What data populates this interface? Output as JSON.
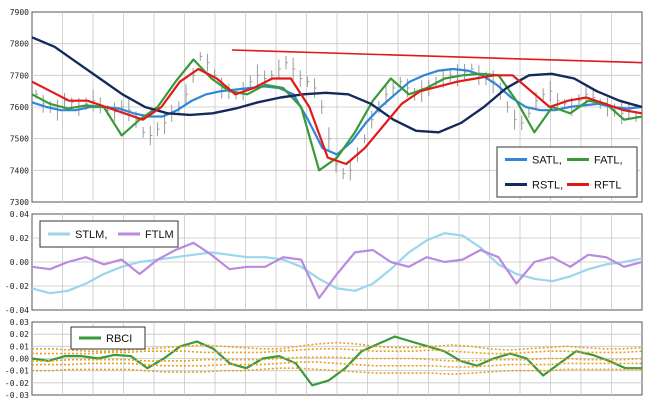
{
  "chart_data": [
    {
      "type": "line",
      "panel": "price",
      "ylim": [
        7300,
        7900
      ],
      "yticks": [
        "7900",
        "7800",
        "7700",
        "7600",
        "7500",
        "7400",
        "7300"
      ],
      "grid": true,
      "legend_position": "bottom-right",
      "legend_rows": [
        [
          "SATL,",
          "FATL,"
        ],
        [
          "RSTL,",
          "RFTL"
        ]
      ],
      "price_bars": [
        7640,
        7610,
        7600,
        7590,
        7620,
        7615,
        7600,
        7610,
        7620,
        7605,
        7590,
        7585,
        7600,
        7590,
        7560,
        7520,
        7510,
        7530,
        7550,
        7580,
        7600,
        7640,
        7700,
        7760,
        7740,
        7700,
        7660,
        7650,
        7640,
        7650,
        7680,
        7700,
        7690,
        7700,
        7720,
        7740,
        7720,
        7690,
        7680,
        7660,
        7600,
        7500,
        7420,
        7390,
        7400,
        7450,
        7500,
        7560,
        7600,
        7640,
        7660,
        7680,
        7660,
        7640,
        7650,
        7660,
        7680,
        7690,
        7700,
        7700,
        7710,
        7720,
        7700,
        7690,
        7680,
        7650,
        7600,
        7560,
        7550,
        7580,
        7620,
        7640,
        7650,
        7620,
        7610,
        7600,
        7620,
        7640,
        7630,
        7610,
        7600,
        7590,
        7580,
        7590,
        7570
      ],
      "series": [
        {
          "name": "SATL",
          "color": "#2f87d6",
          "values": [
            7615,
            7600,
            7590,
            7590,
            7600,
            7600,
            7595,
            7580,
            7570,
            7570,
            7590,
            7620,
            7640,
            7650,
            7655,
            7660,
            7665,
            7660,
            7640,
            7560,
            7470,
            7450,
            7490,
            7550,
            7600,
            7640,
            7680,
            7700,
            7715,
            7720,
            7715,
            7700,
            7670,
            7630,
            7600,
            7590,
            7590,
            7600,
            7605,
            7610,
            7600,
            7595,
            7600
          ]
        },
        {
          "name": "FATL",
          "color": "#3a9a3a",
          "values": [
            7640,
            7610,
            7595,
            7605,
            7600,
            7510,
            7560,
            7600,
            7680,
            7750,
            7690,
            7650,
            7640,
            7670,
            7660,
            7600,
            7400,
            7440,
            7520,
            7620,
            7690,
            7640,
            7660,
            7690,
            7700,
            7705,
            7700,
            7620,
            7520,
            7600,
            7580,
            7620,
            7610,
            7560,
            7570
          ]
        },
        {
          "name": "RSTL",
          "color": "#142a5c",
          "values": [
            7820,
            7790,
            7740,
            7690,
            7640,
            7600,
            7580,
            7575,
            7580,
            7595,
            7615,
            7630,
            7640,
            7645,
            7640,
            7610,
            7560,
            7525,
            7520,
            7550,
            7600,
            7660,
            7700,
            7705,
            7690,
            7650,
            7620,
            7600
          ]
        },
        {
          "name": "RFTL",
          "color": "#e01a1a",
          "values": [
            7680,
            7650,
            7620,
            7620,
            7600,
            7580,
            7560,
            7600,
            7680,
            7720,
            7690,
            7640,
            7660,
            7690,
            7690,
            7600,
            7440,
            7420,
            7470,
            7540,
            7610,
            7650,
            7665,
            7680,
            7690,
            7700,
            7700,
            7650,
            7600,
            7620,
            7630,
            7610,
            7590,
            7580
          ]
        }
      ],
      "trendline": {
        "color": "#e01a1a",
        "from": 7780,
        "to": 7740
      }
    },
    {
      "type": "line",
      "panel": "momentum",
      "ylim": [
        -0.04,
        0.04
      ],
      "yticks": [
        "0.04",
        "0.02",
        "0.00",
        "-0.02",
        "-0.04"
      ],
      "grid": true,
      "legend_position": "top-left",
      "legend_rows": [
        [
          "STLM,",
          "FTLM"
        ]
      ],
      "series": [
        {
          "name": "STLM",
          "color": "#9bd6ec",
          "values": [
            -0.022,
            -0.026,
            -0.024,
            -0.018,
            -0.01,
            -0.004,
            0.0,
            0.002,
            0.004,
            0.006,
            0.008,
            0.006,
            0.004,
            0.004,
            0.002,
            -0.004,
            -0.014,
            -0.022,
            -0.024,
            -0.018,
            -0.006,
            0.008,
            0.018,
            0.024,
            0.022,
            0.012,
            -0.002,
            -0.01,
            -0.014,
            -0.016,
            -0.012,
            -0.006,
            -0.002,
            0.0,
            0.003
          ]
        },
        {
          "name": "FTLM",
          "color": "#b98ae0",
          "values": [
            -0.004,
            -0.006,
            0.0,
            0.004,
            -0.002,
            0.002,
            -0.01,
            0.002,
            0.01,
            0.016,
            0.006,
            -0.006,
            -0.004,
            -0.004,
            0.004,
            0.002,
            -0.03,
            -0.01,
            0.008,
            0.01,
            0.0,
            -0.004,
            0.004,
            0.0,
            0.002,
            0.01,
            0.004,
            -0.018,
            0.0,
            0.004,
            -0.004,
            0.006,
            0.004,
            -0.004,
            0.0
          ]
        }
      ]
    },
    {
      "type": "line",
      "panel": "rbci",
      "ylim": [
        -0.03,
        0.03
      ],
      "yticks": [
        "0.03",
        "0.02",
        "0.01",
        "0.00",
        "-0.01",
        "-0.02",
        "-0.03"
      ],
      "grid": true,
      "legend_position": "top-left",
      "legend_rows": [
        [
          "RBCI"
        ]
      ],
      "series": [
        {
          "name": "RBCI",
          "color": "#3a9a3a",
          "values": [
            0.0,
            -0.002,
            0.002,
            0.002,
            0.0,
            0.003,
            0.002,
            -0.008,
            0.0,
            0.01,
            0.014,
            0.008,
            -0.004,
            -0.008,
            0.0,
            0.002,
            -0.004,
            -0.022,
            -0.018,
            -0.008,
            0.006,
            0.012,
            0.018,
            0.014,
            0.01,
            0.006,
            -0.002,
            -0.006,
            0.0,
            0.004,
            0.0,
            -0.014,
            -0.004,
            0.006,
            0.003,
            -0.002,
            -0.008,
            -0.008
          ]
        },
        {
          "name": "band",
          "color": "#e8a020",
          "values": [
            0.008,
            0.008,
            0.007,
            0.006,
            0.006,
            0.007,
            0.008,
            0.009,
            0.01,
            0.011,
            0.01,
            0.009,
            0.008,
            0.008,
            0.01,
            0.012,
            0.013,
            0.012,
            0.01,
            0.009,
            0.009,
            0.01,
            0.011,
            0.01,
            0.008,
            0.007,
            0.008,
            0.009,
            0.01,
            0.009,
            0.008,
            0.008,
            0.009
          ]
        },
        {
          "name": "band",
          "color": "#e8a020",
          "values": [
            0.004,
            0.004,
            0.004,
            0.004,
            0.005,
            0.005,
            0.006,
            0.006,
            0.006,
            0.005,
            0.005,
            0.005,
            0.005,
            0.006,
            0.007,
            0.008,
            0.008,
            0.007,
            0.006,
            0.006,
            0.006,
            0.007,
            0.006,
            0.005,
            0.004,
            0.004,
            0.005,
            0.006,
            0.006,
            0.005,
            0.005,
            0.005,
            0.006
          ]
        },
        {
          "name": "band",
          "color": "#e8a020",
          "values": [
            -0.002,
            -0.002,
            -0.001,
            -0.001,
            -0.001,
            -0.001,
            -0.002,
            -0.002,
            -0.002,
            -0.001,
            -0.001,
            -0.001,
            -0.001,
            0.0,
            0.001,
            0.001,
            0.001,
            0.0,
            0.0,
            0.0,
            0.0,
            -0.001,
            -0.002,
            -0.002,
            -0.001,
            -0.001,
            -0.001,
            0.0,
            0.0,
            -0.001,
            -0.001,
            -0.001,
            0.0
          ]
        },
        {
          "name": "band",
          "color": "#e8a020",
          "values": [
            -0.005,
            -0.005,
            -0.005,
            -0.004,
            -0.004,
            -0.004,
            -0.005,
            -0.006,
            -0.006,
            -0.006,
            -0.005,
            -0.005,
            -0.005,
            -0.004,
            -0.003,
            -0.003,
            -0.004,
            -0.005,
            -0.006,
            -0.006,
            -0.006,
            -0.006,
            -0.007,
            -0.007,
            -0.006,
            -0.005,
            -0.005,
            -0.005,
            -0.004,
            -0.004,
            -0.004,
            -0.004,
            -0.004
          ]
        },
        {
          "name": "band",
          "color": "#e8a020",
          "values": [
            -0.01,
            -0.01,
            -0.009,
            -0.009,
            -0.009,
            -0.009,
            -0.01,
            -0.011,
            -0.011,
            -0.011,
            -0.01,
            -0.01,
            -0.009,
            -0.008,
            -0.008,
            -0.009,
            -0.01,
            -0.011,
            -0.012,
            -0.012,
            -0.012,
            -0.012,
            -0.013,
            -0.012,
            -0.011,
            -0.01,
            -0.01,
            -0.01,
            -0.009,
            -0.009,
            -0.009,
            -0.009,
            -0.009
          ]
        }
      ]
    }
  ]
}
